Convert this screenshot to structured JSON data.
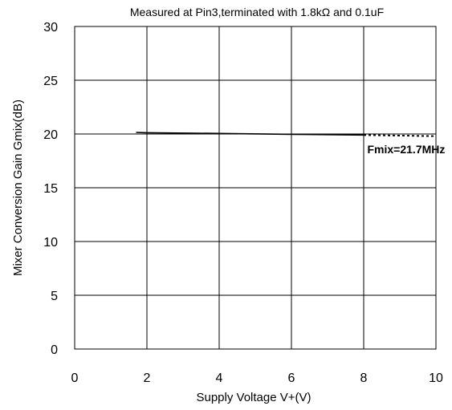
{
  "chart_data": {
    "type": "line",
    "title": "Measured at Pin3,terminated with 1.8kΩ and 0.1uF",
    "xlabel": "Supply Voltage V+(V)",
    "ylabel": "Mixer Conversion Gain Gmix(dB)",
    "xlim": [
      0,
      10
    ],
    "ylim": [
      0,
      30
    ],
    "xticks": [
      0,
      2,
      4,
      6,
      8,
      10
    ],
    "yticks": [
      0,
      5,
      10,
      15,
      20,
      25,
      30
    ],
    "grid": true,
    "series": [
      {
        "name": "",
        "style": "solid",
        "color": "#000000",
        "x": [
          1.7,
          2,
          4,
          6,
          8
        ],
        "y": [
          20.15,
          20.12,
          20.05,
          19.97,
          19.9
        ]
      },
      {
        "name": "",
        "style": "dotted",
        "color": "#000000",
        "x": [
          8,
          10
        ],
        "y": [
          19.9,
          19.8
        ]
      }
    ],
    "annotations": [
      {
        "text": "Fmix=21.7MHz",
        "x": 8.1,
        "y": 18.6
      }
    ]
  }
}
